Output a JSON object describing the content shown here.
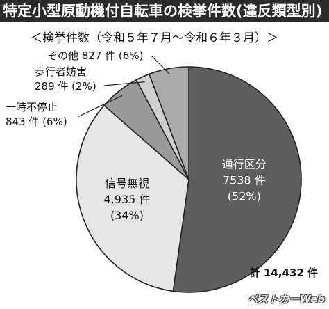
{
  "chart_data": {
    "type": "pie",
    "title": "特定小型原動機付自転車の検挙件数(違反類型別)",
    "subtitle": "＜検挙件数（令和５年７月〜令和６年３月）＞",
    "total_label": "計 14,432 件",
    "slices": [
      {
        "name": "通行区分",
        "value_label": "7538 件",
        "percent_label": "(52%)",
        "value": 7538,
        "color": "#5e5e5e"
      },
      {
        "name": "信号無視",
        "value_label": "4,935 件",
        "percent_label": "(34%)",
        "value": 4935,
        "color": "#e6e6e6"
      },
      {
        "name": "一時不停止",
        "value_label": "843 件 (6%)",
        "value": 843,
        "color": "#9a9a9a"
      },
      {
        "name": "歩行者妨害",
        "value_label": "289 件 (2%)",
        "value": 289,
        "color": "#cfcfcf"
      },
      {
        "name": "その他",
        "value_label": "827 件 (6%)",
        "value": 827,
        "color": "#ababab"
      }
    ]
  },
  "watermark": "ベストカーWeb"
}
